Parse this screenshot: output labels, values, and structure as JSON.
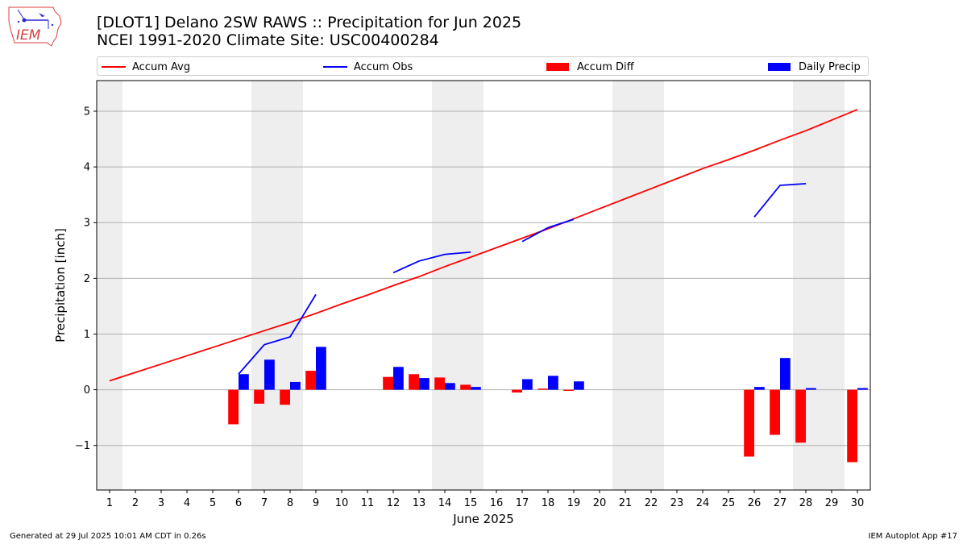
{
  "header": {
    "title_line1": "[DLOT1] Delano 2SW RAWS :: Precipitation for Jun 2025",
    "title_line2": "NCEI 1991-2020 Climate Site: USC00400284",
    "logo_text": "IEM"
  },
  "legend": {
    "items": [
      {
        "label": "Accum Avg",
        "kind": "line",
        "color": "#ff0000"
      },
      {
        "label": "Accum Obs",
        "kind": "line",
        "color": "#0000ff"
      },
      {
        "label": "Accum Diff",
        "kind": "patch",
        "color": "#ff0000"
      },
      {
        "label": "Daily Precip",
        "kind": "patch",
        "color": "#0000ff"
      }
    ]
  },
  "footer": {
    "left": "Generated at 29 Jul 2025 10:01 AM CDT in 0.26s",
    "right": "IEM Autoplot App #17"
  },
  "chart_data": {
    "type": "bar",
    "xlabel": "June 2025",
    "ylabel": "Precipitation [inch]",
    "xlim": [
      0.5,
      30.5
    ],
    "ylim": [
      -1.8,
      5.55
    ],
    "yticks": [
      -1,
      0,
      1,
      2,
      3,
      4,
      5
    ],
    "ytick_labels": [
      "−1",
      "0",
      "1",
      "2",
      "3",
      "4",
      "5"
    ],
    "days": [
      1,
      2,
      3,
      4,
      5,
      6,
      7,
      8,
      9,
      10,
      11,
      12,
      13,
      14,
      15,
      16,
      17,
      18,
      19,
      20,
      21,
      22,
      23,
      24,
      25,
      26,
      27,
      28,
      29,
      30
    ],
    "weekend_days": [
      1,
      7,
      8,
      14,
      15,
      21,
      22,
      28,
      29
    ],
    "grid": "y",
    "legend_position": "top",
    "colors": {
      "accum_avg": "#ff0000",
      "accum_obs": "#0000ff",
      "accum_diff": "#ff0000",
      "daily_precip": "#0000ff",
      "weekend_shade": "#eeeeee",
      "grid": "#b0b0b0"
    },
    "series": [
      {
        "name": "Accum Avg",
        "kind": "line",
        "values": [
          0.16,
          0.31,
          0.46,
          0.61,
          0.76,
          0.91,
          1.06,
          1.21,
          1.37,
          1.54,
          1.7,
          1.87,
          2.03,
          2.21,
          2.38,
          2.55,
          2.72,
          2.89,
          3.07,
          3.25,
          3.43,
          3.61,
          3.79,
          3.97,
          4.13,
          4.3,
          4.48,
          4.65,
          4.84,
          5.03
        ]
      },
      {
        "name": "Accum Obs",
        "kind": "line",
        "segments": [
          {
            "days": [
              6,
              7,
              8,
              9
            ],
            "values": [
              0.28,
              0.81,
              0.95,
              1.71
            ]
          },
          {
            "days": [
              12,
              13,
              14,
              15
            ],
            "values": [
              2.1,
              2.31,
              2.43,
              2.47
            ]
          },
          {
            "days": [
              17,
              18,
              19
            ],
            "values": [
              2.66,
              2.91,
              3.06
            ]
          },
          {
            "days": [
              26,
              27,
              28
            ],
            "values": [
              3.1,
              3.67,
              3.7
            ]
          }
        ]
      },
      {
        "name": "Accum Diff",
        "kind": "bar",
        "days": [
          6,
          7,
          8,
          9,
          12,
          13,
          14,
          15,
          17,
          18,
          19,
          26,
          27,
          28,
          30
        ],
        "values": [
          -0.62,
          -0.25,
          -0.27,
          0.34,
          0.23,
          0.28,
          0.22,
          0.09,
          -0.05,
          0.02,
          -0.02,
          -1.2,
          -0.81,
          -0.95,
          -1.3
        ]
      },
      {
        "name": "Daily Precip",
        "kind": "bar",
        "days": [
          6,
          7,
          8,
          9,
          12,
          13,
          14,
          15,
          17,
          18,
          19,
          26,
          27,
          28,
          30
        ],
        "values": [
          0.28,
          0.54,
          0.14,
          0.77,
          0.41,
          0.21,
          0.12,
          0.05,
          0.19,
          0.25,
          0.15,
          0.05,
          0.57,
          0.03,
          0.03
        ]
      }
    ]
  }
}
